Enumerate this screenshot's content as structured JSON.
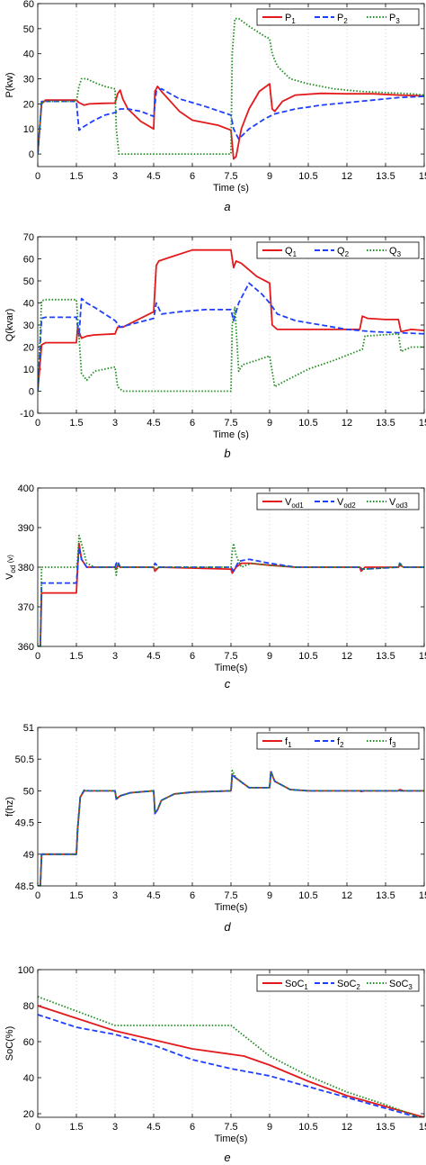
{
  "colors": {
    "s1": "#e31a1c",
    "s2": "#1f3fff",
    "s3": "#1e8c1e"
  },
  "chart_data": [
    {
      "type": "line",
      "caption": "a",
      "xlabel": "Time (s)",
      "ylabel": "P(kw)",
      "xlim": [
        0,
        15
      ],
      "ylim": [
        -5,
        60
      ],
      "xticks": [
        "0",
        "1.5",
        "3",
        "4.5",
        "6",
        "7.5",
        "9",
        "10.5",
        "12",
        "13.5",
        "15"
      ],
      "yticks": [
        "0",
        "10",
        "20",
        "30",
        "40",
        "50",
        "60"
      ],
      "legend": "top-right",
      "series": [
        {
          "name": "P",
          "sub": "1",
          "x": [
            0,
            0.15,
            0.3,
            1.5,
            1.6,
            1.8,
            2.0,
            2.5,
            3.0,
            3.1,
            3.2,
            3.3,
            3.5,
            4.0,
            4.5,
            4.55,
            4.65,
            4.8,
            5.5,
            6,
            7,
            7.5,
            7.6,
            7.7,
            7.9,
            8.2,
            8.6,
            9.0,
            9.1,
            9.2,
            9.5,
            10,
            11,
            12,
            13,
            14,
            15
          ],
          "y": [
            0,
            20,
            21.5,
            21.5,
            20.5,
            19.5,
            20,
            20.2,
            20.3,
            24,
            25.5,
            22,
            18,
            13,
            10,
            25,
            27,
            25,
            17,
            13.5,
            11.5,
            9.5,
            -2,
            -1,
            10,
            18,
            25,
            28,
            18,
            17,
            21,
            23.5,
            24.2,
            24,
            24,
            23.5,
            23.2
          ]
        },
        {
          "name": "P",
          "sub": "2",
          "x": [
            0,
            0.15,
            0.3,
            1.5,
            1.6,
            1.8,
            2.2,
            2.6,
            3.0,
            3.2,
            3.5,
            4.0,
            4.5,
            4.6,
            4.8,
            5.5,
            6.5,
            7.5,
            7.6,
            7.8,
            8.2,
            8.8,
            9.2,
            10,
            11,
            12,
            13,
            14,
            15
          ],
          "y": [
            0,
            21,
            21,
            21,
            9.5,
            11,
            13.5,
            15.5,
            16.5,
            18,
            18,
            17,
            15,
            25,
            26,
            22,
            19,
            15.5,
            10,
            6,
            10,
            14,
            16,
            18,
            19.5,
            20.5,
            21.5,
            22.5,
            23
          ]
        },
        {
          "name": "P",
          "sub": "3",
          "x": [
            0,
            0.15,
            0.3,
            1.5,
            1.6,
            1.7,
            1.9,
            2.2,
            2.6,
            3.0,
            3.05,
            3.15,
            3.5,
            4.5,
            6,
            7.5,
            7.55,
            7.65,
            7.8,
            8.2,
            8.8,
            9.0,
            9.1,
            9.3,
            9.8,
            10.5,
            11.5,
            12.5,
            13.5,
            14.5,
            15
          ],
          "y": [
            0,
            21,
            21,
            21,
            27,
            30,
            30,
            28.5,
            27,
            26,
            10,
            0,
            0,
            0,
            0,
            0,
            40,
            54,
            54,
            51,
            47,
            46,
            40,
            35,
            30,
            28,
            26,
            25,
            24.5,
            24,
            23.5
          ]
        }
      ]
    },
    {
      "type": "line",
      "caption": "b",
      "xlabel": "Time (s)",
      "ylabel": "Q(kvar)",
      "xlim": [
        0,
        15
      ],
      "ylim": [
        -10,
        70
      ],
      "xticks": [
        "0",
        "1.5",
        "3",
        "4.5",
        "6",
        "7.5",
        "9",
        "10.5",
        "12",
        "13.5",
        "15"
      ],
      "yticks": [
        "-10",
        "0",
        "10",
        "20",
        "30",
        "40",
        "50",
        "60",
        "70"
      ],
      "legend": "top-right",
      "series": [
        {
          "name": "Q",
          "sub": "1",
          "x": [
            0,
            0.15,
            0.3,
            1.5,
            1.55,
            1.6,
            1.7,
            1.9,
            2.2,
            3.0,
            3.1,
            3.3,
            4.5,
            4.6,
            4.7,
            5.2,
            6,
            6.5,
            7.5,
            7.6,
            7.7,
            7.9,
            8.5,
            9.0,
            9.1,
            9.3,
            10,
            11,
            12,
            12.5,
            12.6,
            12.8,
            13.5,
            14,
            14.1,
            14.5,
            15
          ],
          "y": [
            0,
            21,
            22,
            22,
            29,
            27,
            24,
            25,
            25.5,
            26,
            29,
            29,
            36,
            57,
            59,
            61,
            64,
            64,
            64,
            56,
            59,
            58,
            52,
            49,
            30,
            28,
            28,
            28,
            28,
            28,
            34,
            33,
            32.5,
            32.5,
            27,
            28,
            27.5
          ]
        },
        {
          "name": "Q",
          "sub": "2",
          "x": [
            0,
            0.15,
            0.3,
            1.5,
            1.6,
            1.7,
            1.9,
            2.2,
            3.0,
            3.2,
            4.5,
            4.6,
            4.8,
            5.5,
            6.5,
            7.5,
            7.6,
            7.8,
            8.2,
            8.7,
            9.0,
            9.3,
            10,
            11,
            12,
            13,
            14,
            15
          ],
          "y": [
            0,
            33,
            33.5,
            33.5,
            25,
            42,
            40,
            38,
            32,
            29,
            33,
            40,
            35,
            36,
            37,
            37,
            32,
            40,
            49,
            44,
            40,
            35,
            32,
            30,
            28,
            27,
            26.5,
            26
          ]
        },
        {
          "name": "Q",
          "sub": "3",
          "x": [
            0,
            0.15,
            0.3,
            1.5,
            1.6,
            1.7,
            1.9,
            2.2,
            3.0,
            3.1,
            3.3,
            4.5,
            6,
            7.5,
            7.55,
            7.65,
            7.8,
            7.95,
            8.5,
            9.0,
            9.2,
            9.5,
            10.5,
            11.5,
            12.6,
            12.7,
            14,
            14.1,
            14.5,
            15
          ],
          "y": [
            0,
            41,
            41.5,
            41.5,
            25,
            8,
            5,
            9,
            11,
            2,
            0,
            0,
            0,
            0,
            30,
            38,
            9,
            12,
            14,
            16,
            2,
            4,
            10,
            14,
            19,
            25,
            26,
            18,
            20,
            20
          ]
        }
      ]
    },
    {
      "type": "line",
      "caption": "c",
      "xlabel": "Time(s)",
      "ylabel": "V",
      "ylabel_sub": "od",
      "ylabel_unit": " (v)",
      "xlim": [
        0,
        15
      ],
      "ylim": [
        360,
        400
      ],
      "xticks": [
        "0",
        "1.5",
        "3",
        "4.5",
        "6",
        "7.5",
        "9",
        "10.5",
        "12",
        "13.5",
        "15"
      ],
      "yticks": [
        "360",
        "370",
        "380",
        "390",
        "400"
      ],
      "legend": "top-right",
      "series": [
        {
          "name": "V",
          "sub": "od1",
          "x": [
            0,
            0.1,
            0.15,
            0.3,
            1.5,
            1.55,
            1.6,
            1.7,
            1.9,
            2.1,
            3.0,
            3.05,
            3.1,
            3.2,
            4.5,
            4.55,
            4.7,
            7.5,
            7.55,
            7.7,
            7.9,
            8.2,
            9.0,
            10,
            12,
            12.5,
            12.55,
            12.7,
            14,
            14.05,
            14.2,
            15
          ],
          "y": [
            360,
            360,
            373.5,
            373.5,
            373.5,
            380,
            386,
            382,
            380,
            380,
            380,
            379.5,
            380.5,
            380,
            380,
            379,
            380,
            379.5,
            378.5,
            380,
            381,
            381,
            380.5,
            380,
            380,
            380,
            379,
            380,
            380,
            380.5,
            380,
            380
          ]
        },
        {
          "name": "V",
          "sub": "od2",
          "x": [
            0,
            0.1,
            0.15,
            0.3,
            1.5,
            1.55,
            1.6,
            1.7,
            1.9,
            2.2,
            3.0,
            3.05,
            3.1,
            3.2,
            4.5,
            4.55,
            4.7,
            7.5,
            7.6,
            7.8,
            8.2,
            9.0,
            10,
            12,
            12.5,
            12.6,
            14,
            14.05,
            14.2,
            15
          ],
          "y": [
            360,
            360,
            376,
            376,
            376,
            380,
            385,
            382,
            380,
            380,
            380,
            381,
            381.5,
            380,
            380,
            381,
            380,
            380,
            379,
            381.5,
            382,
            381,
            380,
            380,
            380,
            379.5,
            380,
            381,
            380,
            380
          ]
        },
        {
          "name": "V",
          "sub": "od3",
          "x": [
            0,
            0.1,
            0.15,
            0.3,
            1.5,
            1.55,
            1.6,
            1.7,
            1.9,
            2.2,
            3.0,
            3.05,
            3.1,
            3.2,
            4.5,
            4.55,
            4.7,
            7.5,
            7.55,
            7.6,
            7.7,
            7.9,
            8.3,
            9.0,
            10,
            12,
            12.5,
            12.6,
            14,
            14.05,
            14.2,
            15
          ],
          "y": [
            360,
            360,
            380,
            380,
            380,
            382,
            388,
            386,
            381,
            380,
            380,
            378,
            381,
            380,
            380,
            379.5,
            380,
            380,
            384,
            386,
            383,
            380,
            381,
            380.5,
            380,
            380,
            380,
            379.5,
            380,
            381,
            380,
            380
          ]
        }
      ]
    },
    {
      "type": "line",
      "caption": "d",
      "xlabel": "Time(s)",
      "ylabel": "f(hz)",
      "xlim": [
        0,
        15
      ],
      "ylim": [
        48.5,
        51
      ],
      "xticks": [
        "0",
        "1.5",
        "3",
        "4.5",
        "6",
        "7.5",
        "9",
        "10.5",
        "12",
        "13.5",
        "15"
      ],
      "yticks": [
        "48.5",
        "49",
        "49.5",
        "50",
        "50.5",
        "51"
      ],
      "legend": "top-right",
      "series": [
        {
          "name": "f",
          "sub": "1",
          "x": [
            0,
            0.1,
            0.15,
            0.3,
            1.5,
            1.55,
            1.65,
            1.8,
            2.0,
            3.0,
            3.05,
            3.2,
            3.6,
            4.5,
            4.55,
            4.65,
            4.8,
            5.3,
            6,
            7.5,
            7.55,
            7.7,
            8.2,
            9.0,
            9.05,
            9.2,
            9.8,
            10.5,
            12,
            12.5,
            12.55,
            12.7,
            14,
            14.05,
            14.2,
            15
          ],
          "y": [
            48.5,
            48.5,
            49,
            49,
            49,
            49.4,
            49.9,
            50,
            50,
            50,
            49.87,
            49.92,
            49.97,
            50,
            49.65,
            49.7,
            49.85,
            49.95,
            49.98,
            50,
            50.25,
            50.2,
            50.05,
            50.05,
            50.3,
            50.15,
            50.02,
            50,
            50,
            50,
            49.99,
            50,
            50,
            50.02,
            50,
            50
          ]
        },
        {
          "name": "f",
          "sub": "2",
          "x": [
            0,
            0.1,
            0.15,
            0.3,
            1.5,
            1.55,
            1.65,
            1.8,
            2.0,
            3.0,
            3.05,
            3.2,
            3.6,
            4.5,
            4.55,
            4.65,
            4.8,
            5.3,
            6,
            7.5,
            7.55,
            7.7,
            8.2,
            9.0,
            9.05,
            9.2,
            9.8,
            10.5,
            12,
            15
          ],
          "y": [
            48.5,
            48.5,
            49,
            49,
            49,
            49.4,
            49.9,
            50.01,
            50,
            50,
            49.87,
            49.92,
            49.97,
            50,
            49.64,
            49.7,
            49.85,
            49.95,
            49.98,
            50,
            50.26,
            50.2,
            50.05,
            50.05,
            50.31,
            50.15,
            50.02,
            50,
            50,
            50
          ]
        },
        {
          "name": "f",
          "sub": "3",
          "x": [
            0,
            0.1,
            0.15,
            0.3,
            1.5,
            1.55,
            1.65,
            1.8,
            2.0,
            3.0,
            3.05,
            3.2,
            3.6,
            4.5,
            4.55,
            4.65,
            4.8,
            5.3,
            6,
            7.5,
            7.55,
            7.7,
            8.2,
            9.0,
            9.05,
            9.2,
            9.8,
            10.5,
            12,
            15
          ],
          "y": [
            48.5,
            48.5,
            49,
            49,
            49,
            49.4,
            49.9,
            50,
            50,
            50,
            49.88,
            49.92,
            49.97,
            50,
            49.66,
            49.7,
            49.85,
            49.95,
            49.98,
            50,
            50.32,
            50.2,
            50.05,
            50.05,
            50.29,
            50.15,
            50.02,
            50,
            50,
            50
          ]
        }
      ]
    },
    {
      "type": "line",
      "caption": "e",
      "xlabel": "Time(s)",
      "ylabel": "SoC(%)",
      "xlim": [
        0,
        15
      ],
      "ylim": [
        18,
        100
      ],
      "xticks": [
        "0",
        "1.5",
        "3",
        "4.5",
        "6",
        "7.5",
        "9",
        "10.5",
        "12",
        "13.5",
        "15"
      ],
      "yticks": [
        "20",
        "40",
        "60",
        "80",
        "100"
      ],
      "legend": "top-right",
      "series": [
        {
          "name": "SoC",
          "sub": "1",
          "x": [
            0,
            1.5,
            3,
            4.5,
            6,
            7.5,
            8,
            9,
            10.5,
            12,
            13.5,
            15
          ],
          "y": [
            80,
            73,
            66,
            61,
            56,
            53,
            52,
            47,
            38,
            30,
            24,
            18
          ]
        },
        {
          "name": "SoC",
          "sub": "2",
          "x": [
            0,
            1.5,
            3,
            4.5,
            6,
            7.5,
            9,
            10.5,
            12,
            13.5,
            15
          ],
          "y": [
            75,
            68,
            64,
            58,
            50,
            45,
            41,
            35,
            29,
            23,
            17
          ]
        },
        {
          "name": "SoC",
          "sub": "3",
          "x": [
            0,
            1.5,
            3,
            4.5,
            6,
            7.5,
            9,
            10.5,
            12,
            13.5,
            15
          ],
          "y": [
            85,
            77,
            69,
            69,
            69,
            69,
            52,
            41,
            32,
            25,
            17
          ]
        }
      ]
    }
  ]
}
